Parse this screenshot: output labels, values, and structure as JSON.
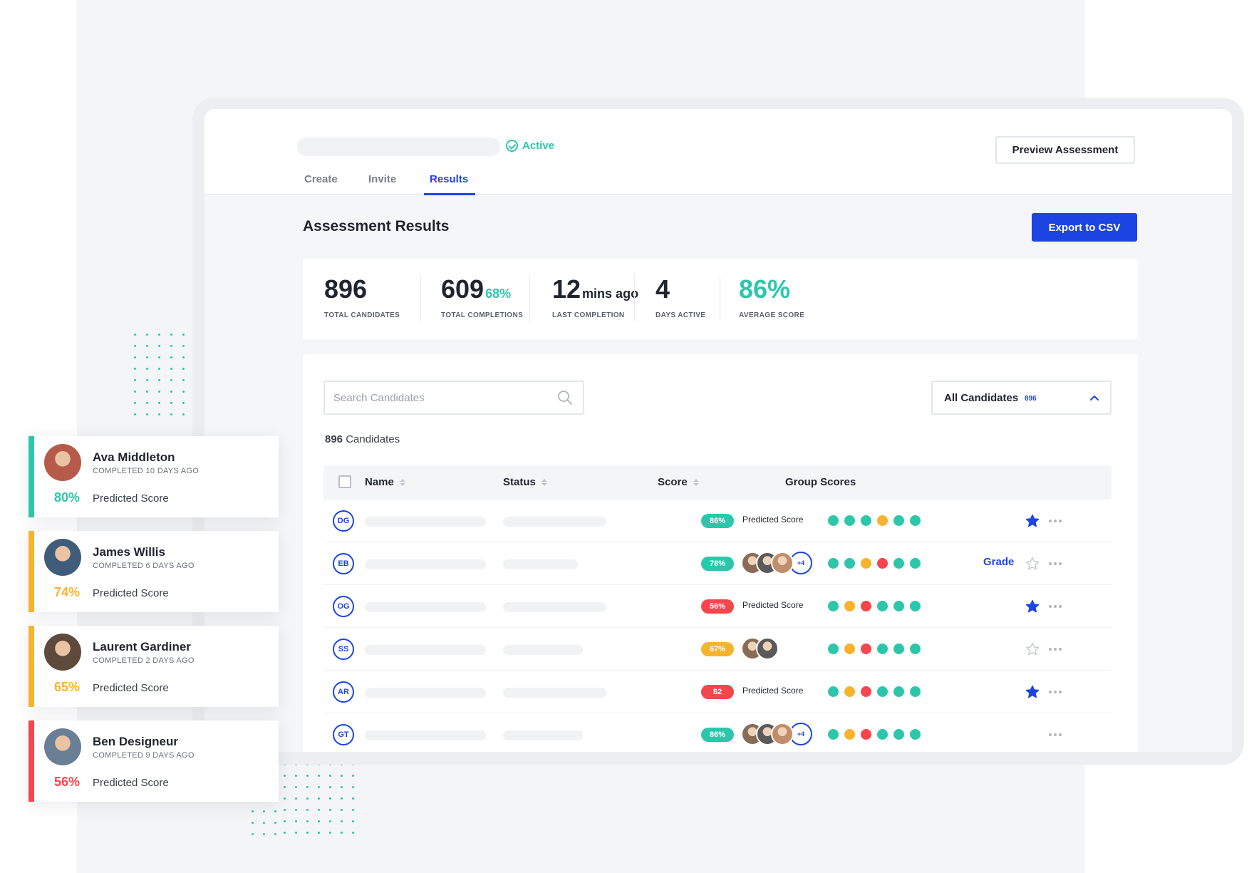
{
  "header": {
    "status_label": "Active",
    "preview_button": "Preview Assessment",
    "tabs": [
      {
        "label": "Create",
        "active": false
      },
      {
        "label": "Invite",
        "active": false
      },
      {
        "label": "Results",
        "active": true
      }
    ]
  },
  "main": {
    "title": "Assessment Results",
    "export_button": "Export to CSV"
  },
  "stats": [
    {
      "value": "896",
      "suffix": "",
      "label": "TOTAL CANDIDATES"
    },
    {
      "value": "609",
      "suffix": "68%",
      "label": "TOTAL COMPLETIONS"
    },
    {
      "value": "12",
      "suffix": "mins ago",
      "label": "LAST COMPLETION"
    },
    {
      "value": "4",
      "suffix": "",
      "label": "DAYS ACTIVE"
    },
    {
      "value": "86%",
      "suffix": "",
      "label": "AVERAGE SCORE"
    }
  ],
  "search": {
    "placeholder": "Search Candidates",
    "value": ""
  },
  "filter": {
    "label": "All Candidates",
    "count": "896"
  },
  "candidates_count": {
    "number": "896",
    "label": "Candidates"
  },
  "table": {
    "columns": [
      "Name",
      "Status",
      "Score",
      "Group Scores"
    ],
    "rows": [
      {
        "initials": "DG",
        "score": "86%",
        "score_color": "#2cc7ab",
        "predicted_label": "Predicted Score",
        "graders": [],
        "graders_more": "",
        "group_scores": [
          "teal",
          "teal",
          "teal",
          "amber",
          "teal",
          "teal"
        ],
        "grade_link": "",
        "starred": true
      },
      {
        "initials": "EB",
        "score": "78%",
        "score_color": "#2cc7ab",
        "predicted_label": "",
        "graders": [
          "g1",
          "g2",
          "g3"
        ],
        "graders_more": "+4",
        "group_scores": [
          "teal",
          "teal",
          "amber",
          "red",
          "teal",
          "teal"
        ],
        "grade_link": "Grade",
        "starred": false
      },
      {
        "initials": "OG",
        "score": "56%",
        "score_color": "#f5454d",
        "predicted_label": "Predicted Score",
        "graders": [],
        "graders_more": "",
        "group_scores": [
          "teal",
          "amber",
          "red",
          "teal",
          "teal",
          "teal"
        ],
        "grade_link": "",
        "starred": true
      },
      {
        "initials": "SS",
        "score": "67%",
        "score_color": "#f8b32e",
        "predicted_label": "",
        "graders": [
          "g1",
          "g2"
        ],
        "graders_more": "",
        "group_scores": [
          "teal",
          "amber",
          "red",
          "teal",
          "teal",
          "teal"
        ],
        "grade_link": "",
        "starred": false
      },
      {
        "initials": "AR",
        "score": "82",
        "score_color": "#f5454d",
        "predicted_label": "Predicted Score",
        "graders": [],
        "graders_more": "",
        "group_scores": [
          "teal",
          "amber",
          "red",
          "teal",
          "teal",
          "teal"
        ],
        "grade_link": "",
        "starred": true
      },
      {
        "initials": "GT",
        "score": "86%",
        "score_color": "#2cc7ab",
        "predicted_label": "",
        "graders": [
          "g1",
          "g2",
          "g3"
        ],
        "graders_more": "+4",
        "group_scores": [
          "teal",
          "amber",
          "red",
          "teal",
          "teal",
          "teal"
        ],
        "grade_link": "",
        "starred": null
      }
    ]
  },
  "side_cards": [
    {
      "name": "Ava Middleton",
      "completed": "COMPLETED 10 DAYS AGO",
      "percent": "80%",
      "label": "Predicted Score",
      "color": "#2cc7ab",
      "avatar_bg": "#b65a4a"
    },
    {
      "name": "James Willis",
      "completed": "COMPLETED 6 DAYS AGO",
      "percent": "74%",
      "label": "Predicted Score",
      "color": "#f8b32e",
      "avatar_bg": "#3f5d7a"
    },
    {
      "name": "Laurent Gardiner",
      "completed": "COMPLETED 2 DAYS AGO",
      "percent": "65%",
      "label": "Predicted Score",
      "color": "#f8b32e",
      "avatar_bg": "#5d4a3d"
    },
    {
      "name": "Ben Designeur",
      "completed": "COMPLETED 9 DAYS AGO",
      "percent": "56%",
      "label": "Predicted Score",
      "color": "#f5454d",
      "avatar_bg": "#6a7f95"
    }
  ],
  "colors": {
    "accent": "#1d45e3",
    "teal": "#2cc7ab",
    "amber": "#f8b32e",
    "red": "#f5454d"
  }
}
